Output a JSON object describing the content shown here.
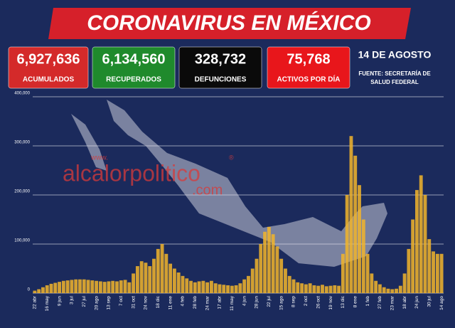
{
  "header": {
    "title": "CORONAVIRUS EN MÉXICO",
    "stats": [
      {
        "value": "6,927,636",
        "label": "ACUMULADOS",
        "color": "#d42a2a"
      },
      {
        "value": "6,134,560",
        "label": "RECUPERADOS",
        "color": "#1f8a2c"
      },
      {
        "value": "328,732",
        "label": "DEFUNCIONES",
        "color": "#0a0a0a"
      },
      {
        "value": "75,768",
        "label": "ACTIVOS POR DÍA",
        "color": "#e8161b"
      }
    ],
    "date": "14 DE AGOSTO",
    "source": [
      "FUENTE: SECRETARÍA DE",
      "SALUD FEDERAL"
    ],
    "watermark": [
      "www.",
      "alcalorpolitico",
      "®",
      ".com"
    ]
  },
  "chart_data": {
    "type": "bar",
    "color": "#f2b52a",
    "grid": true,
    "categories": [
      "22 abr",
      null,
      null,
      "16 may",
      null,
      null,
      "9 jun",
      null,
      null,
      "3 jul",
      null,
      null,
      "27 jul",
      null,
      null,
      "20 ago",
      null,
      null,
      "13 sep",
      null,
      null,
      "7 oct",
      null,
      null,
      "31 oct",
      null,
      null,
      "24 nov",
      null,
      null,
      "18 dic",
      null,
      null,
      "11 ene",
      null,
      null,
      "4 feb",
      null,
      null,
      "28 feb",
      null,
      null,
      "24 mar",
      null,
      null,
      "17 abr",
      null,
      null,
      "11 may",
      null,
      null,
      "4 jun",
      null,
      null,
      "28 jun",
      null,
      null,
      "22 jul",
      null,
      null,
      "15 ago",
      null,
      null,
      "8 sep",
      null,
      null,
      "2 oct",
      null,
      null,
      "26 oct",
      null,
      null,
      "19 nov",
      null,
      null,
      "13 dic",
      null,
      null,
      "8 ene",
      null,
      null,
      "1 feb",
      null,
      null,
      "27 feb",
      null,
      null,
      "23 mar",
      null,
      null,
      "18 abr",
      null,
      null,
      "24 jun",
      null,
      null,
      "30 jul",
      null,
      null,
      "14 ago"
    ],
    "values": [
      5000,
      8000,
      12000,
      16000,
      19000,
      21000,
      23000,
      25000,
      26000,
      27000,
      28000,
      28000,
      28000,
      27000,
      26000,
      25000,
      24000,
      23000,
      24000,
      25000,
      24000,
      26000,
      27000,
      22000,
      40000,
      55000,
      65000,
      62000,
      55000,
      70000,
      90000,
      100000,
      80000,
      60000,
      50000,
      42000,
      35000,
      30000,
      25000,
      22000,
      24000,
      25000,
      22000,
      25000,
      20000,
      18000,
      17000,
      16000,
      15000,
      16000,
      20000,
      28000,
      35000,
      50000,
      70000,
      100000,
      125000,
      135000,
      120000,
      95000,
      70000,
      50000,
      35000,
      28000,
      22000,
      20000,
      18000,
      20000,
      16000,
      15000,
      17000,
      14000,
      15000,
      16000,
      15000,
      80000,
      200000,
      320000,
      280000,
      220000,
      150000,
      80000,
      40000,
      25000,
      18000,
      12000,
      9000,
      8000,
      9000,
      15000,
      40000,
      90000,
      150000,
      210000,
      240000,
      200000,
      110000,
      85000,
      80000,
      80000
    ],
    "ylim": [
      0,
      400000
    ],
    "yticks": [
      0,
      {
        "value": 100000,
        "label": "100,000"
      },
      {
        "value": 200000,
        "label": "200,000"
      },
      {
        "value": 300000,
        "label": "300,000"
      },
      {
        "value": 400000,
        "label": "400,000"
      }
    ]
  }
}
